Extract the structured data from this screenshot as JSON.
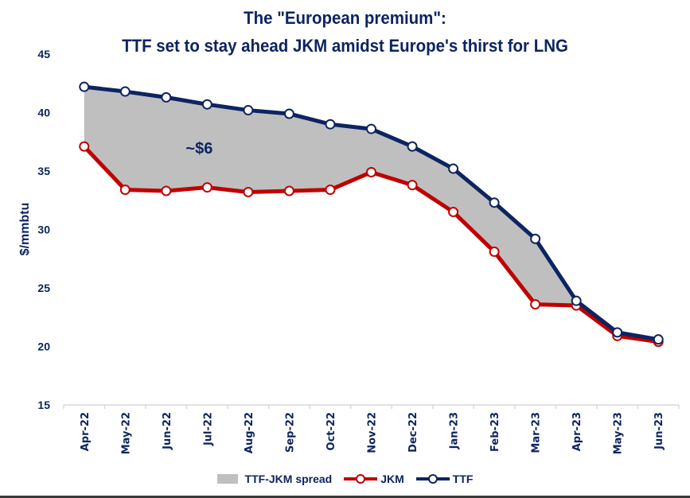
{
  "chart_data": {
    "type": "line",
    "title": "The \"European premium\":",
    "subtitle": "TTF set to stay ahead JKM amidst Europe's thirst for LNG",
    "xlabel": "",
    "ylabel": "$/mmbtu",
    "ylim": [
      15,
      45
    ],
    "yticks": [
      15,
      20,
      25,
      30,
      35,
      40,
      45
    ],
    "grid": false,
    "legend_position": "bottom",
    "categories": [
      "Apr-22",
      "May-22",
      "Jun-22",
      "Jul-22",
      "Aug-22",
      "Sep-22",
      "Oct-22",
      "Nov-22",
      "Dec-22",
      "Jan-23",
      "Feb-23",
      "Mar-23",
      "Apr-23",
      "May-23",
      "Jun-23"
    ],
    "series": [
      {
        "name": "TTF-JKM spread",
        "type": "area",
        "color": "#bfbfbf",
        "description": "shaded area between JKM and TTF"
      },
      {
        "name": "JKM",
        "color": "#c00000",
        "values": [
          37.1,
          33.4,
          33.3,
          33.6,
          33.2,
          33.3,
          33.4,
          34.9,
          33.8,
          31.5,
          28.1,
          23.6,
          23.5,
          20.9,
          20.4
        ]
      },
      {
        "name": "TTF",
        "color": "#0d2461",
        "values": [
          42.2,
          41.8,
          41.3,
          40.7,
          40.2,
          39.9,
          39.0,
          38.6,
          37.1,
          35.2,
          32.3,
          29.2,
          23.9,
          21.2,
          20.6
        ]
      }
    ],
    "annotations": [
      {
        "text": "~$6",
        "x": "Jul-22",
        "y": 36.5
      }
    ]
  },
  "legend": {
    "spread_label": "TTF-JKM spread",
    "jkm_label": "JKM",
    "ttf_label": "TTF"
  }
}
